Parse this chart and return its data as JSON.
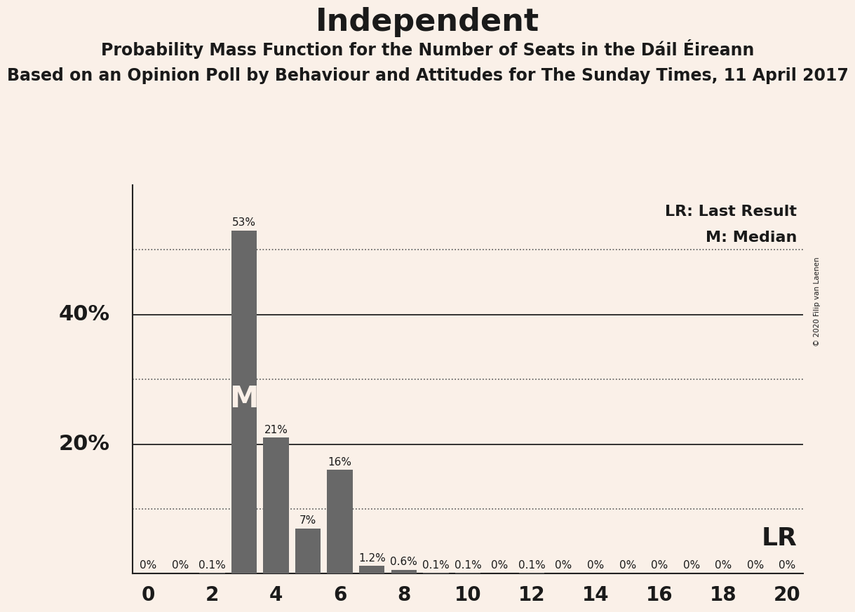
{
  "title": "Independent",
  "subtitle": "Probability Mass Function for the Number of Seats in the Dáil Éireann",
  "subtitle2": "Based on an Opinion Poll by Behaviour and Attitudes for The Sunday Times, 11 April 2017",
  "copyright": "© 2020 Filip van Laenen",
  "x_values": [
    0,
    1,
    2,
    3,
    4,
    5,
    6,
    7,
    8,
    9,
    10,
    11,
    12,
    13,
    14,
    15,
    16,
    17,
    18,
    19,
    20
  ],
  "y_values": [
    0.0,
    0.0,
    0.1,
    53.0,
    21.0,
    7.0,
    16.0,
    1.2,
    0.6,
    0.1,
    0.1,
    0.0,
    0.1,
    0.0,
    0.0,
    0.0,
    0.0,
    0.0,
    0.0,
    0.0,
    0.0
  ],
  "bar_color": "#686868",
  "background_color": "#FAF0E8",
  "title_fontsize": 32,
  "subtitle_fontsize": 17,
  "subtitle2_fontsize": 17,
  "bar_label_fontsize": 11,
  "axis_tick_fontsize": 20,
  "ylabel_fontsize": 22,
  "legend_fontsize": 16,
  "annotation_fontsize": 26,
  "median_x": 3,
  "ylim": [
    0,
    60
  ],
  "xlim": [
    -0.5,
    20.5
  ],
  "yticks_solid": [
    20,
    40
  ],
  "yticks_dotted": [
    10,
    30,
    50
  ],
  "xtick_labels": [
    "0",
    "2",
    "4",
    "6",
    "8",
    "10",
    "12",
    "14",
    "16",
    "18",
    "20"
  ],
  "xtick_positions": [
    0,
    2,
    4,
    6,
    8,
    10,
    12,
    14,
    16,
    18,
    20
  ]
}
